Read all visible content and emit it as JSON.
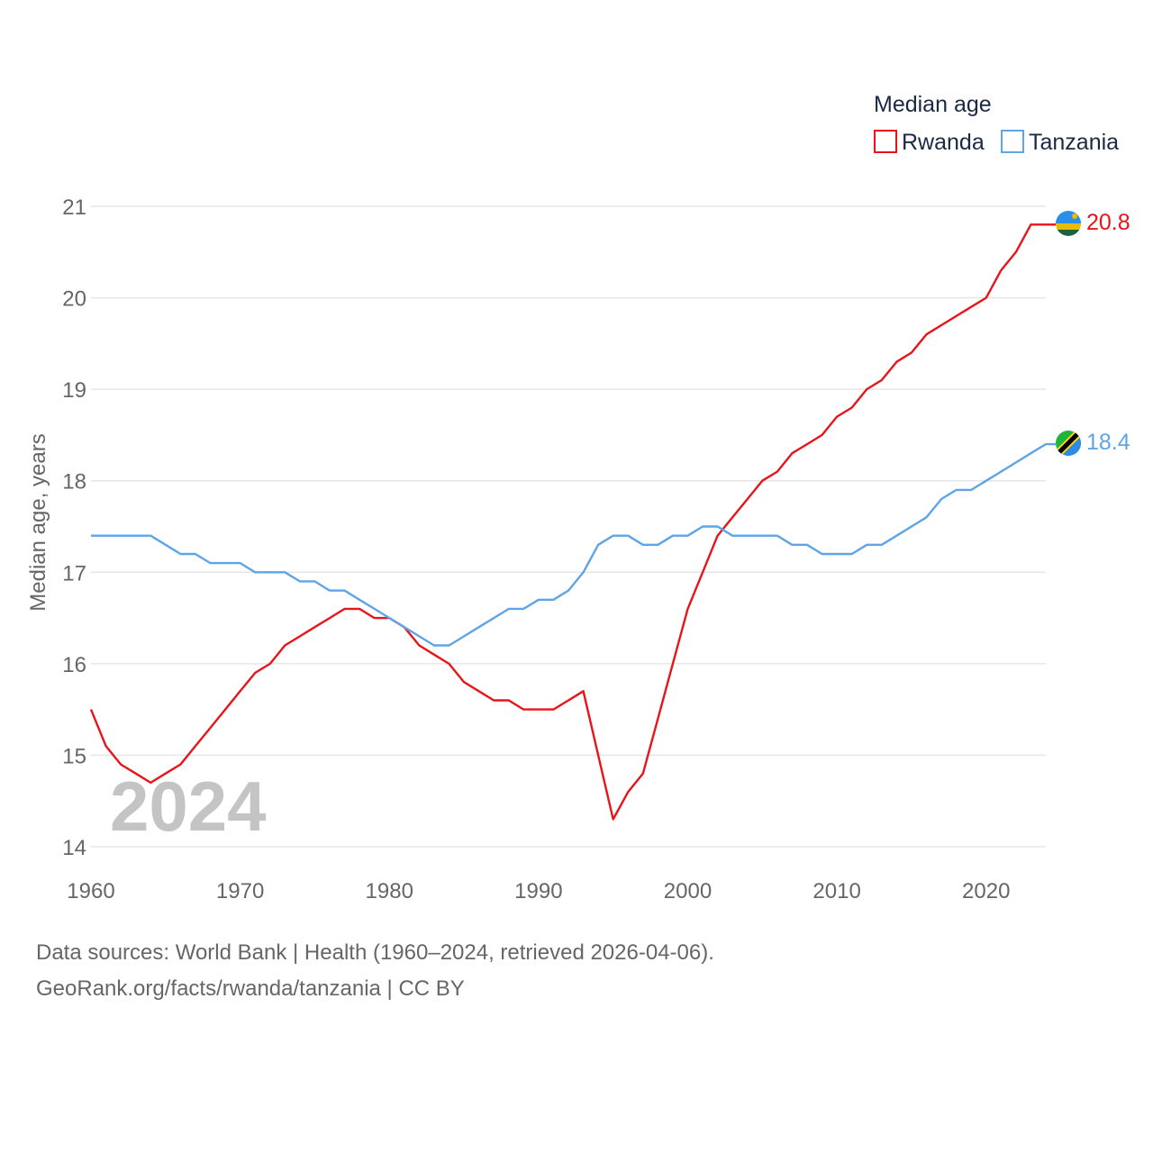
{
  "chart_data": {
    "type": "line",
    "legend_title": "Median age",
    "ylabel": "Median age, years",
    "xlabel": "",
    "xlim": [
      1960,
      2024
    ],
    "ylim": [
      14,
      21
    ],
    "x_ticks": [
      1960,
      1970,
      1980,
      1990,
      2000,
      2010,
      2020
    ],
    "y_ticks": [
      14,
      15,
      16,
      17,
      18,
      19,
      20,
      21
    ],
    "x_tick_labels": [
      "1960",
      "1970",
      "1980",
      "1990",
      "2000",
      "2010",
      "2020"
    ],
    "y_tick_labels": [
      "14",
      "15",
      "16",
      "17",
      "18",
      "19",
      "20",
      "21"
    ],
    "year_label": "2024",
    "grid": true,
    "legend_position": "top-right",
    "x": [
      1960,
      1961,
      1962,
      1963,
      1964,
      1965,
      1966,
      1967,
      1968,
      1969,
      1970,
      1971,
      1972,
      1973,
      1974,
      1975,
      1976,
      1977,
      1978,
      1979,
      1980,
      1981,
      1982,
      1983,
      1984,
      1985,
      1986,
      1987,
      1988,
      1989,
      1990,
      1991,
      1992,
      1993,
      1994,
      1995,
      1996,
      1997,
      1998,
      1999,
      2000,
      2001,
      2002,
      2003,
      2004,
      2005,
      2006,
      2007,
      2008,
      2009,
      2010,
      2011,
      2012,
      2013,
      2014,
      2015,
      2016,
      2017,
      2018,
      2019,
      2020,
      2021,
      2022,
      2023,
      2024
    ],
    "series": [
      {
        "name": "Rwanda",
        "color": "#e8141a",
        "end_label": "20.8",
        "flag": "rwanda-flag-icon",
        "values": [
          15.5,
          15.1,
          14.9,
          14.8,
          14.7,
          14.8,
          14.9,
          15.1,
          15.3,
          15.5,
          15.7,
          15.9,
          16.0,
          16.2,
          16.3,
          16.4,
          16.5,
          16.6,
          16.6,
          16.5,
          16.5,
          16.4,
          16.2,
          16.1,
          16.0,
          15.8,
          15.7,
          15.6,
          15.6,
          15.5,
          15.5,
          15.5,
          15.6,
          15.7,
          15.0,
          14.3,
          14.6,
          14.8,
          15.4,
          16.0,
          16.6,
          17.0,
          17.4,
          17.6,
          17.8,
          18.0,
          18.1,
          18.3,
          18.4,
          18.5,
          18.7,
          18.8,
          19.0,
          19.1,
          19.3,
          19.4,
          19.6,
          19.7,
          19.8,
          19.9,
          20.0,
          20.3,
          20.5,
          20.8,
          20.8
        ]
      },
      {
        "name": "Tanzania",
        "color": "#5ea4e6",
        "end_label": "18.4",
        "flag": "tanzania-flag-icon",
        "values": [
          17.4,
          17.4,
          17.4,
          17.4,
          17.4,
          17.3,
          17.2,
          17.2,
          17.1,
          17.1,
          17.1,
          17.0,
          17.0,
          17.0,
          16.9,
          16.9,
          16.8,
          16.8,
          16.7,
          16.6,
          16.5,
          16.4,
          16.3,
          16.2,
          16.2,
          16.3,
          16.4,
          16.5,
          16.6,
          16.6,
          16.7,
          16.7,
          16.8,
          17.0,
          17.3,
          17.4,
          17.4,
          17.3,
          17.3,
          17.4,
          17.4,
          17.5,
          17.5,
          17.4,
          17.4,
          17.4,
          17.4,
          17.3,
          17.3,
          17.2,
          17.2,
          17.2,
          17.3,
          17.3,
          17.4,
          17.5,
          17.6,
          17.8,
          17.9,
          17.9,
          18.0,
          18.1,
          18.2,
          18.3,
          18.4
        ]
      }
    ]
  },
  "footer": {
    "sources": "Data sources: World Bank | Health (1960–2024, retrieved 2026-04-06).",
    "credit": "GeoRank.org/facts/rwanda/tanzania | CC BY"
  }
}
